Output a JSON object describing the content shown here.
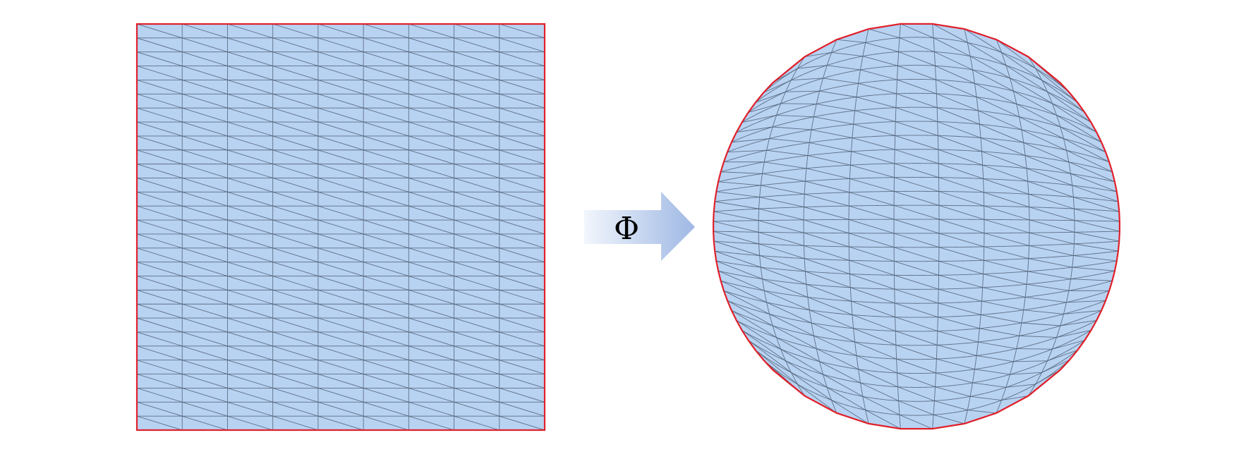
{
  "diagram": {
    "arrow_label": "Φ",
    "mesh": {
      "columns": 9,
      "rows": 29
    },
    "colors": {
      "fill": "#b8d2f2",
      "mesh_line": "#4d5f73",
      "boundary": "#e0202a",
      "arrow_start": "#f2f6fc",
      "arrow_end": "#9fb8e4"
    }
  }
}
